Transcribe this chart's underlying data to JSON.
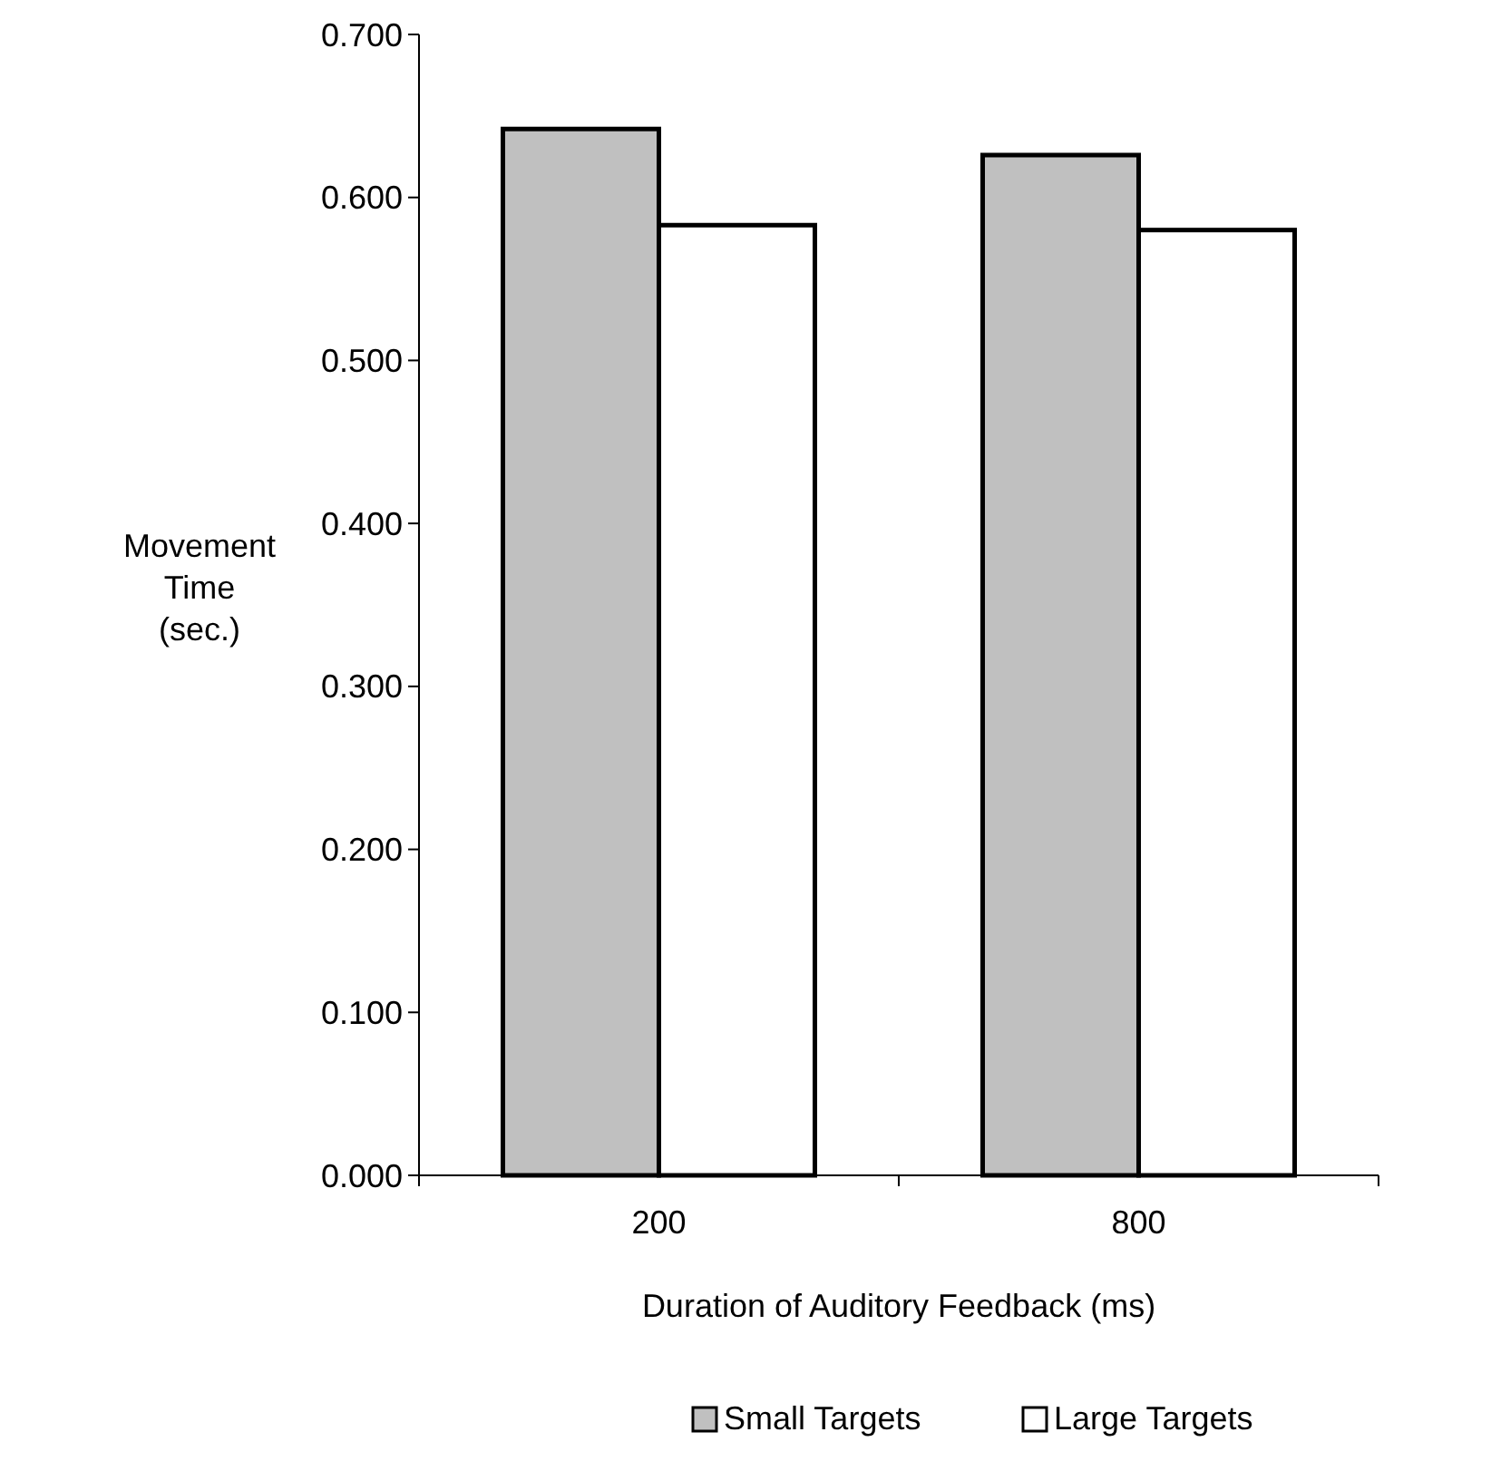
{
  "chart_data": {
    "type": "bar",
    "xlabel": "Duration of Auditory Feedback (ms)",
    "ylabel": "Movement Time (sec.)",
    "categories": [
      "200",
      "800"
    ],
    "series": [
      {
        "name": "Small Targets",
        "color": "#c0c0c0",
        "values": [
          0.642,
          0.626
        ]
      },
      {
        "name": "Large Targets",
        "color": "#ffffff",
        "values": [
          0.583,
          0.58
        ]
      }
    ],
    "ylim": [
      0,
      0.7
    ],
    "yticks": [
      {
        "value": 0,
        "label": "0.000"
      },
      {
        "value": 0.1,
        "label": "0.100"
      },
      {
        "value": 0.2,
        "label": "0.200"
      },
      {
        "value": 0.3,
        "label": "0.300"
      },
      {
        "value": 0.4,
        "label": "0.400"
      },
      {
        "value": 0.5,
        "label": "0.500"
      },
      {
        "value": 0.6,
        "label": "0.600"
      },
      {
        "value": 0.7,
        "label": "0.700"
      }
    ],
    "grid": false,
    "legend": "bottom"
  }
}
